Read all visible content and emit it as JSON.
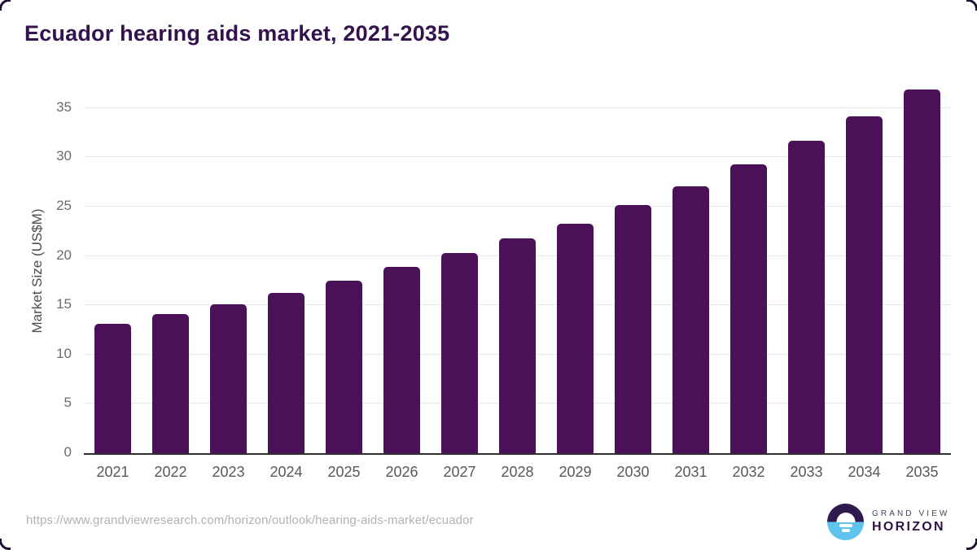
{
  "title": "Ecuador hearing aids market, 2021-2035",
  "chart_data": {
    "type": "bar",
    "title": "Ecuador hearing aids market, 2021-2035",
    "categories": [
      "2021",
      "2022",
      "2023",
      "2024",
      "2025",
      "2026",
      "2027",
      "2028",
      "2029",
      "2030",
      "2031",
      "2032",
      "2033",
      "2034",
      "2035"
    ],
    "values": [
      13.1,
      14.1,
      15.1,
      16.3,
      17.5,
      18.9,
      20.3,
      21.8,
      23.3,
      25.2,
      27.1,
      29.3,
      31.7,
      34.2,
      36.9
    ],
    "xlabel": "",
    "ylabel": "Market Size (US$M)",
    "ylim": [
      0,
      37.3
    ],
    "yticks": [
      0,
      5,
      10,
      15,
      20,
      25,
      30,
      35
    ],
    "grid": true,
    "legend": false
  },
  "colors": {
    "bar": "#4a1158",
    "title": "#33124e",
    "gridline": "#e8e8e8",
    "axis_line": "#2f2f2f",
    "tick_text": "#6b6b6b",
    "x_tick_text": "#58585c",
    "url_text": "#b2b2b2",
    "logo_dark": "#2e1a4c",
    "logo_blue": "#5fc3ee"
  },
  "footer": {
    "source_url": "https://www.grandviewresearch.com/horizon/outlook/hearing-aids-market/ecuador",
    "logo": {
      "top": "GRAND VIEW",
      "bottom": "HORIZON"
    }
  }
}
